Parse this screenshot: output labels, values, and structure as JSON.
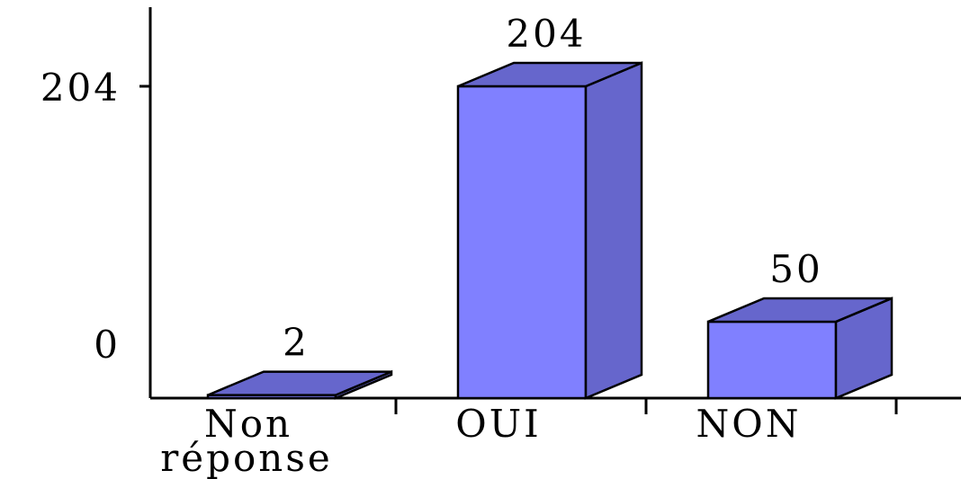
{
  "chart_data": {
    "type": "bar",
    "categories": [
      {
        "lines": [
          "Non",
          "réponse"
        ]
      },
      {
        "lines": [
          "OUI"
        ]
      },
      {
        "lines": [
          "NON"
        ]
      }
    ],
    "values": [
      2,
      204,
      50
    ],
    "data_labels": [
      "2",
      "204",
      "50"
    ],
    "y_ticks": [
      {
        "value": 0,
        "label": "0"
      },
      {
        "value": 204,
        "label": "204"
      }
    ],
    "ylim": [
      0,
      204
    ],
    "grid": false,
    "style": "3d",
    "colors": {
      "front": "#8080ff",
      "side": "#6666cc",
      "top": "#6666cc",
      "outline": "#000000"
    }
  }
}
